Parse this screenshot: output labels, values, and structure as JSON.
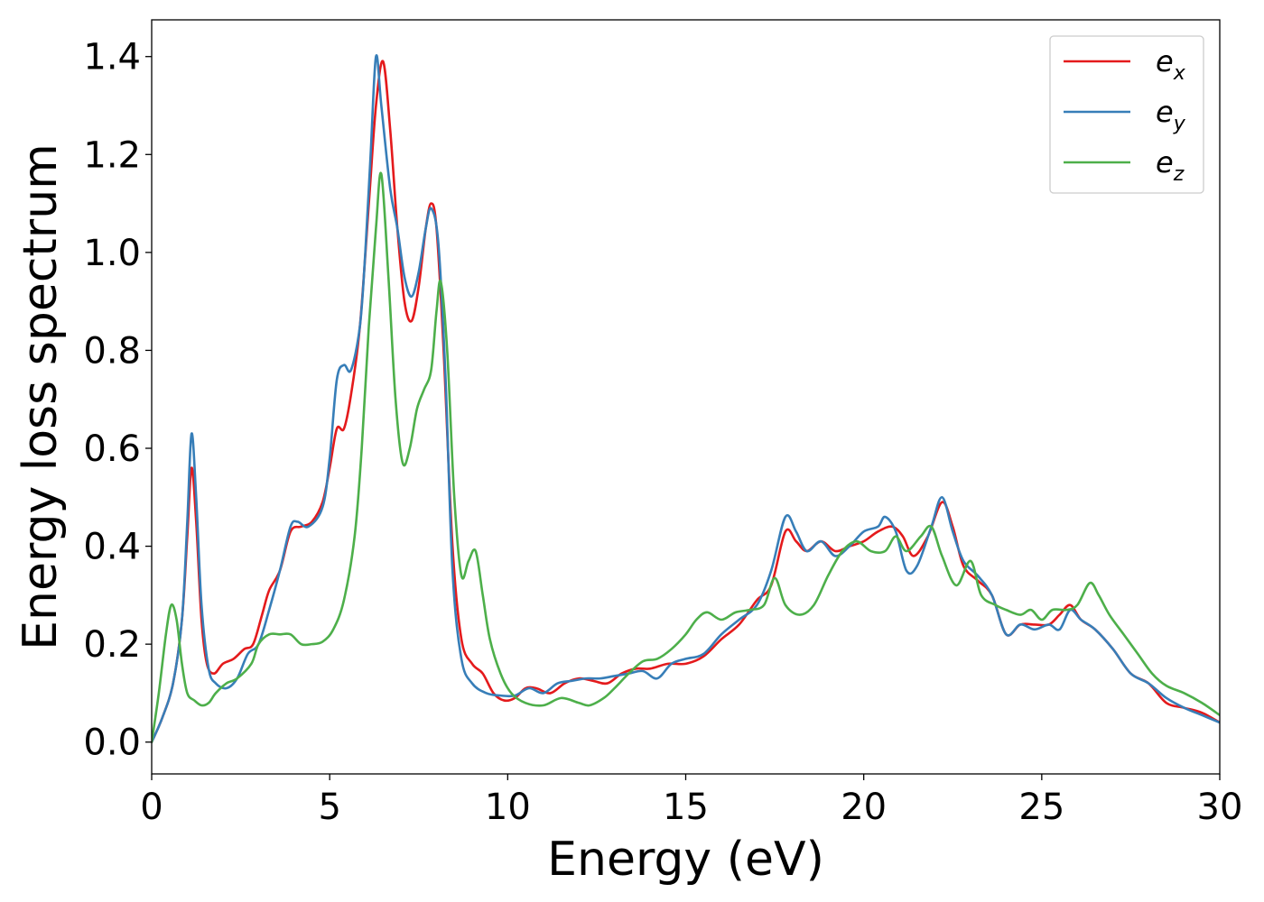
{
  "chart_data": {
    "type": "line",
    "title": "",
    "xlabel": "Energy (eV)",
    "ylabel": "Energy loss spectrum",
    "xlim": [
      0,
      30
    ],
    "ylim": [
      -0.065,
      1.475
    ],
    "xticks": [
      0,
      5,
      10,
      15,
      20,
      25,
      30
    ],
    "xtick_labels": [
      "0",
      "5",
      "10",
      "15",
      "20",
      "25",
      "30"
    ],
    "yticks": [
      0.0,
      0.2,
      0.4,
      0.6,
      0.8,
      1.0,
      1.2,
      1.4
    ],
    "ytick_labels": [
      "0.0",
      "0.2",
      "0.4",
      "0.6",
      "0.8",
      "1.0",
      "1.2",
      "1.4"
    ],
    "grid": false,
    "legend_position": "top-right",
    "series": [
      {
        "name": "e",
        "subscript": "x",
        "color": "#e41a1c",
        "points": [
          [
            0,
            0
          ],
          [
            0.3,
            0.05
          ],
          [
            0.6,
            0.12
          ],
          [
            0.85,
            0.25
          ],
          [
            1.0,
            0.42
          ],
          [
            1.12,
            0.56
          ],
          [
            1.25,
            0.45
          ],
          [
            1.4,
            0.25
          ],
          [
            1.55,
            0.16
          ],
          [
            1.75,
            0.14
          ],
          [
            2.0,
            0.16
          ],
          [
            2.3,
            0.17
          ],
          [
            2.6,
            0.19
          ],
          [
            2.85,
            0.2
          ],
          [
            3.1,
            0.26
          ],
          [
            3.3,
            0.31
          ],
          [
            3.6,
            0.35
          ],
          [
            3.9,
            0.43
          ],
          [
            4.2,
            0.44
          ],
          [
            4.5,
            0.45
          ],
          [
            4.8,
            0.49
          ],
          [
            5.0,
            0.56
          ],
          [
            5.2,
            0.64
          ],
          [
            5.4,
            0.64
          ],
          [
            5.6,
            0.71
          ],
          [
            5.85,
            0.85
          ],
          [
            6.1,
            1.1
          ],
          [
            6.3,
            1.3
          ],
          [
            6.5,
            1.39
          ],
          [
            6.7,
            1.25
          ],
          [
            6.9,
            1.05
          ],
          [
            7.1,
            0.9
          ],
          [
            7.3,
            0.86
          ],
          [
            7.5,
            0.93
          ],
          [
            7.7,
            1.05
          ],
          [
            7.85,
            1.1
          ],
          [
            8.0,
            1.05
          ],
          [
            8.2,
            0.8
          ],
          [
            8.45,
            0.4
          ],
          [
            8.7,
            0.21
          ],
          [
            9.0,
            0.16
          ],
          [
            9.3,
            0.14
          ],
          [
            9.6,
            0.1
          ],
          [
            9.9,
            0.085
          ],
          [
            10.2,
            0.09
          ],
          [
            10.5,
            0.11
          ],
          [
            10.8,
            0.11
          ],
          [
            11.2,
            0.1
          ],
          [
            11.6,
            0.12
          ],
          [
            12.0,
            0.13
          ],
          [
            12.4,
            0.125
          ],
          [
            12.8,
            0.12
          ],
          [
            13.2,
            0.14
          ],
          [
            13.6,
            0.15
          ],
          [
            14.0,
            0.15
          ],
          [
            14.5,
            0.16
          ],
          [
            15.0,
            0.16
          ],
          [
            15.5,
            0.175
          ],
          [
            16.0,
            0.21
          ],
          [
            16.5,
            0.24
          ],
          [
            17.0,
            0.29
          ],
          [
            17.4,
            0.32
          ],
          [
            17.8,
            0.43
          ],
          [
            18.1,
            0.41
          ],
          [
            18.4,
            0.39
          ],
          [
            18.8,
            0.41
          ],
          [
            19.2,
            0.39
          ],
          [
            19.6,
            0.4
          ],
          [
            20.0,
            0.41
          ],
          [
            20.4,
            0.43
          ],
          [
            20.8,
            0.44
          ],
          [
            21.1,
            0.42
          ],
          [
            21.4,
            0.38
          ],
          [
            21.8,
            0.42
          ],
          [
            22.2,
            0.49
          ],
          [
            22.5,
            0.44
          ],
          [
            22.8,
            0.36
          ],
          [
            23.2,
            0.33
          ],
          [
            23.6,
            0.3
          ],
          [
            24.0,
            0.22
          ],
          [
            24.4,
            0.24
          ],
          [
            24.8,
            0.24
          ],
          [
            25.2,
            0.24
          ],
          [
            25.5,
            0.26
          ],
          [
            25.8,
            0.28
          ],
          [
            26.1,
            0.25
          ],
          [
            26.5,
            0.23
          ],
          [
            27.0,
            0.19
          ],
          [
            27.5,
            0.14
          ],
          [
            28.0,
            0.12
          ],
          [
            28.5,
            0.08
          ],
          [
            29.0,
            0.07
          ],
          [
            29.5,
            0.06
          ],
          [
            30.0,
            0.04
          ]
        ]
      },
      {
        "name": "e",
        "subscript": "y",
        "color": "#377eb8",
        "points": [
          [
            0,
            0
          ],
          [
            0.3,
            0.05
          ],
          [
            0.6,
            0.12
          ],
          [
            0.85,
            0.25
          ],
          [
            1.0,
            0.45
          ],
          [
            1.12,
            0.63
          ],
          [
            1.25,
            0.5
          ],
          [
            1.4,
            0.28
          ],
          [
            1.6,
            0.15
          ],
          [
            1.8,
            0.12
          ],
          [
            2.1,
            0.11
          ],
          [
            2.4,
            0.13
          ],
          [
            2.7,
            0.18
          ],
          [
            3.0,
            0.2
          ],
          [
            3.3,
            0.27
          ],
          [
            3.6,
            0.35
          ],
          [
            3.9,
            0.44
          ],
          [
            4.1,
            0.45
          ],
          [
            4.4,
            0.44
          ],
          [
            4.8,
            0.48
          ],
          [
            5.0,
            0.58
          ],
          [
            5.2,
            0.74
          ],
          [
            5.4,
            0.77
          ],
          [
            5.6,
            0.76
          ],
          [
            5.85,
            0.85
          ],
          [
            6.0,
            1.0
          ],
          [
            6.15,
            1.2
          ],
          [
            6.3,
            1.4
          ],
          [
            6.45,
            1.3
          ],
          [
            6.7,
            1.13
          ],
          [
            6.9,
            1.05
          ],
          [
            7.1,
            0.95
          ],
          [
            7.3,
            0.91
          ],
          [
            7.5,
            0.96
          ],
          [
            7.7,
            1.05
          ],
          [
            7.85,
            1.09
          ],
          [
            8.05,
            1.02
          ],
          [
            8.25,
            0.75
          ],
          [
            8.45,
            0.35
          ],
          [
            8.7,
            0.17
          ],
          [
            9.0,
            0.12
          ],
          [
            9.4,
            0.1
          ],
          [
            9.8,
            0.095
          ],
          [
            10.2,
            0.095
          ],
          [
            10.6,
            0.11
          ],
          [
            11.0,
            0.1
          ],
          [
            11.4,
            0.12
          ],
          [
            11.8,
            0.125
          ],
          [
            12.2,
            0.13
          ],
          [
            12.6,
            0.13
          ],
          [
            13.0,
            0.135
          ],
          [
            13.4,
            0.14
          ],
          [
            13.8,
            0.145
          ],
          [
            14.2,
            0.13
          ],
          [
            14.6,
            0.16
          ],
          [
            15.0,
            0.17
          ],
          [
            15.5,
            0.18
          ],
          [
            16.0,
            0.22
          ],
          [
            16.5,
            0.25
          ],
          [
            17.0,
            0.28
          ],
          [
            17.4,
            0.35
          ],
          [
            17.8,
            0.46
          ],
          [
            18.1,
            0.43
          ],
          [
            18.4,
            0.39
          ],
          [
            18.8,
            0.41
          ],
          [
            19.2,
            0.38
          ],
          [
            19.6,
            0.4
          ],
          [
            20.0,
            0.43
          ],
          [
            20.4,
            0.44
          ],
          [
            20.6,
            0.46
          ],
          [
            20.9,
            0.43
          ],
          [
            21.2,
            0.35
          ],
          [
            21.5,
            0.36
          ],
          [
            21.9,
            0.44
          ],
          [
            22.2,
            0.5
          ],
          [
            22.5,
            0.43
          ],
          [
            22.8,
            0.37
          ],
          [
            23.2,
            0.34
          ],
          [
            23.6,
            0.3
          ],
          [
            24.0,
            0.22
          ],
          [
            24.4,
            0.24
          ],
          [
            24.8,
            0.23
          ],
          [
            25.2,
            0.24
          ],
          [
            25.5,
            0.23
          ],
          [
            25.8,
            0.27
          ],
          [
            26.1,
            0.25
          ],
          [
            26.5,
            0.23
          ],
          [
            27.0,
            0.19
          ],
          [
            27.5,
            0.14
          ],
          [
            28.0,
            0.12
          ],
          [
            28.5,
            0.09
          ],
          [
            29.0,
            0.07
          ],
          [
            29.5,
            0.055
          ],
          [
            30.0,
            0.04
          ]
        ]
      },
      {
        "name": "e",
        "subscript": "z",
        "color": "#4daf4a",
        "points": [
          [
            0,
            0
          ],
          [
            0.2,
            0.1
          ],
          [
            0.4,
            0.22
          ],
          [
            0.55,
            0.28
          ],
          [
            0.7,
            0.25
          ],
          [
            0.85,
            0.16
          ],
          [
            1.0,
            0.1
          ],
          [
            1.2,
            0.085
          ],
          [
            1.4,
            0.075
          ],
          [
            1.6,
            0.08
          ],
          [
            1.8,
            0.1
          ],
          [
            2.1,
            0.12
          ],
          [
            2.4,
            0.13
          ],
          [
            2.8,
            0.16
          ],
          [
            3.0,
            0.2
          ],
          [
            3.3,
            0.22
          ],
          [
            3.6,
            0.22
          ],
          [
            3.9,
            0.22
          ],
          [
            4.2,
            0.2
          ],
          [
            4.5,
            0.2
          ],
          [
            4.8,
            0.205
          ],
          [
            5.1,
            0.23
          ],
          [
            5.4,
            0.29
          ],
          [
            5.7,
            0.42
          ],
          [
            5.9,
            0.6
          ],
          [
            6.1,
            0.85
          ],
          [
            6.3,
            1.05
          ],
          [
            6.45,
            1.16
          ],
          [
            6.65,
            0.95
          ],
          [
            6.85,
            0.7
          ],
          [
            7.05,
            0.57
          ],
          [
            7.25,
            0.6
          ],
          [
            7.45,
            0.68
          ],
          [
            7.65,
            0.72
          ],
          [
            7.85,
            0.76
          ],
          [
            8.0,
            0.88
          ],
          [
            8.12,
            0.94
          ],
          [
            8.3,
            0.8
          ],
          [
            8.5,
            0.5
          ],
          [
            8.7,
            0.34
          ],
          [
            8.9,
            0.37
          ],
          [
            9.1,
            0.39
          ],
          [
            9.3,
            0.3
          ],
          [
            9.5,
            0.21
          ],
          [
            9.8,
            0.14
          ],
          [
            10.1,
            0.1
          ],
          [
            10.5,
            0.08
          ],
          [
            11.0,
            0.075
          ],
          [
            11.5,
            0.09
          ],
          [
            12.0,
            0.08
          ],
          [
            12.3,
            0.075
          ],
          [
            12.7,
            0.09
          ],
          [
            13.0,
            0.11
          ],
          [
            13.4,
            0.14
          ],
          [
            13.8,
            0.165
          ],
          [
            14.2,
            0.17
          ],
          [
            14.6,
            0.19
          ],
          [
            15.0,
            0.22
          ],
          [
            15.3,
            0.25
          ],
          [
            15.6,
            0.265
          ],
          [
            16.0,
            0.25
          ],
          [
            16.4,
            0.265
          ],
          [
            16.8,
            0.27
          ],
          [
            17.2,
            0.28
          ],
          [
            17.5,
            0.335
          ],
          [
            17.8,
            0.28
          ],
          [
            18.2,
            0.26
          ],
          [
            18.6,
            0.28
          ],
          [
            19.0,
            0.34
          ],
          [
            19.4,
            0.39
          ],
          [
            19.8,
            0.41
          ],
          [
            20.2,
            0.39
          ],
          [
            20.6,
            0.39
          ],
          [
            20.9,
            0.42
          ],
          [
            21.2,
            0.39
          ],
          [
            21.6,
            0.42
          ],
          [
            21.9,
            0.44
          ],
          [
            22.2,
            0.38
          ],
          [
            22.6,
            0.32
          ],
          [
            23.0,
            0.37
          ],
          [
            23.3,
            0.3
          ],
          [
            23.7,
            0.28
          ],
          [
            24.0,
            0.27
          ],
          [
            24.4,
            0.26
          ],
          [
            24.7,
            0.27
          ],
          [
            25.0,
            0.25
          ],
          [
            25.3,
            0.27
          ],
          [
            25.7,
            0.27
          ],
          [
            26.0,
            0.28
          ],
          [
            26.35,
            0.325
          ],
          [
            26.6,
            0.3
          ],
          [
            26.9,
            0.26
          ],
          [
            27.3,
            0.22
          ],
          [
            27.7,
            0.18
          ],
          [
            28.1,
            0.14
          ],
          [
            28.5,
            0.115
          ],
          [
            29.0,
            0.1
          ],
          [
            29.5,
            0.08
          ],
          [
            30.0,
            0.055
          ]
        ]
      }
    ]
  }
}
